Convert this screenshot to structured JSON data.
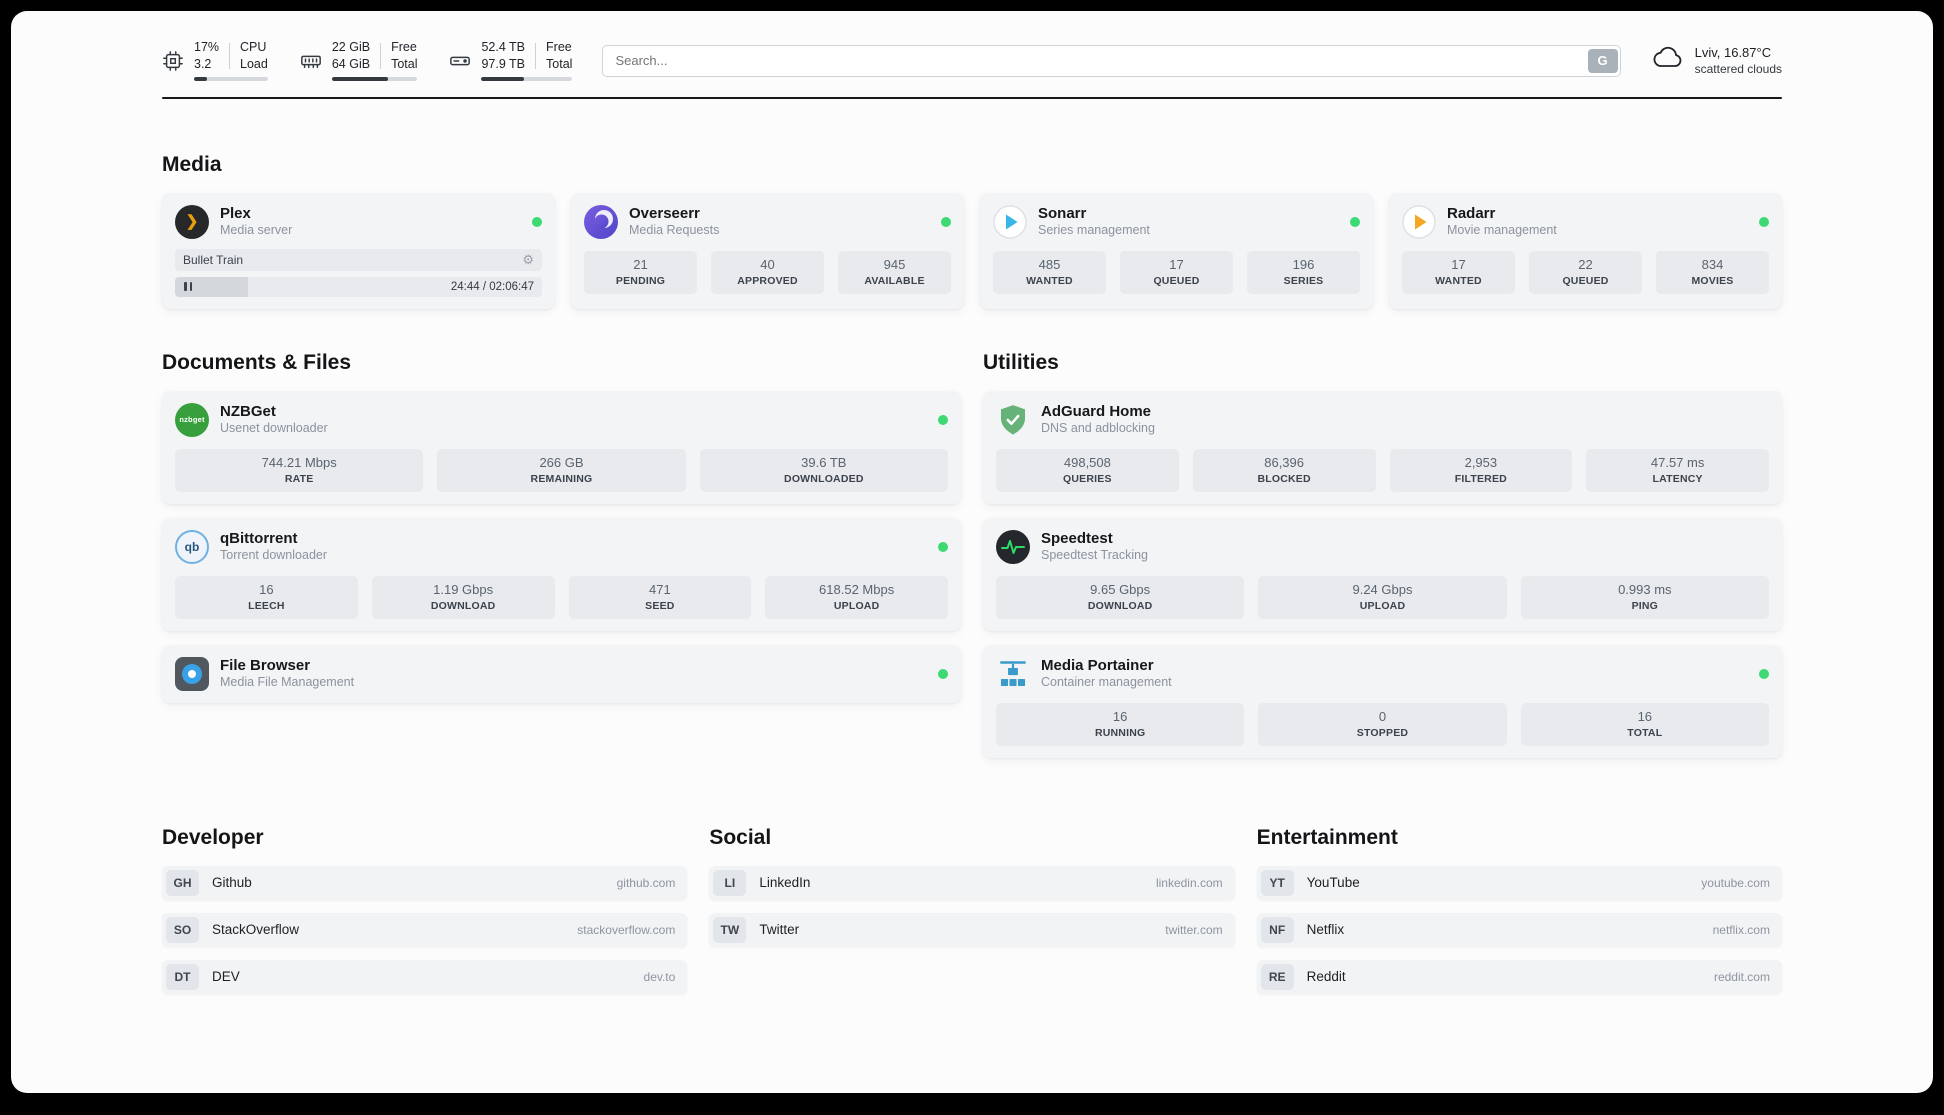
{
  "topbar": {
    "cpu": {
      "percent": "17%",
      "value": "3.2",
      "label_top": "CPU",
      "label_bottom": "Load",
      "progress": 17
    },
    "ram": {
      "free": "22 GiB",
      "total": "64 GiB",
      "label_top": "Free",
      "label_bottom": "Total",
      "progress": 66
    },
    "disk": {
      "free": "52.4 TB",
      "total": "97.9 TB",
      "label_top": "Free",
      "label_bottom": "Total",
      "progress": 47
    },
    "search": {
      "placeholder": "Search...",
      "engine_label": "G"
    },
    "weather": {
      "location": "Lviv, 16.87°C",
      "condition": "scattered clouds"
    }
  },
  "sections": {
    "media": "Media",
    "documents": "Documents & Files",
    "utilities": "Utilities",
    "developer": "Developer",
    "social": "Social",
    "entertainment": "Entertainment"
  },
  "apps": {
    "plex": {
      "name": "Plex",
      "subtitle": "Media server",
      "now_playing": "Bullet Train",
      "time": "24:44 / 02:06:47",
      "progress": 20,
      "glyph": "❯",
      "gear": "⚙"
    },
    "overseerr": {
      "name": "Overseerr",
      "subtitle": "Media Requests",
      "stats": [
        {
          "value": "21",
          "label": "PENDING"
        },
        {
          "value": "40",
          "label": "APPROVED"
        },
        {
          "value": "945",
          "label": "AVAILABLE"
        }
      ]
    },
    "sonarr": {
      "name": "Sonarr",
      "subtitle": "Series management",
      "stats": [
        {
          "value": "485",
          "label": "WANTED"
        },
        {
          "value": "17",
          "label": "QUEUED"
        },
        {
          "value": "196",
          "label": "SERIES"
        }
      ]
    },
    "radarr": {
      "name": "Radarr",
      "subtitle": "Movie management",
      "stats": [
        {
          "value": "17",
          "label": "WANTED"
        },
        {
          "value": "22",
          "label": "QUEUED"
        },
        {
          "value": "834",
          "label": "MOVIES"
        }
      ]
    },
    "nzbget": {
      "name": "NZBGet",
      "subtitle": "Usenet downloader",
      "icon_text": "nzbget",
      "stats": [
        {
          "value": "744.21 Mbps",
          "label": "RATE"
        },
        {
          "value": "266 GB",
          "label": "REMAINING"
        },
        {
          "value": "39.6 TB",
          "label": "DOWNLOADED"
        }
      ]
    },
    "qbittorrent": {
      "name": "qBittorrent",
      "subtitle": "Torrent downloader",
      "icon_text": "qb",
      "stats": [
        {
          "value": "16",
          "label": "LEECH"
        },
        {
          "value": "1.19 Gbps",
          "label": "DOWNLOAD"
        },
        {
          "value": "471",
          "label": "SEED"
        },
        {
          "value": "618.52 Mbps",
          "label": "UPLOAD"
        }
      ]
    },
    "filebrowser": {
      "name": "File Browser",
      "subtitle": "Media File Management"
    },
    "adguard": {
      "name": "AdGuard Home",
      "subtitle": "DNS and adblocking",
      "stats": [
        {
          "value": "498,508",
          "label": "QUERIES"
        },
        {
          "value": "86,396",
          "label": "BLOCKED"
        },
        {
          "value": "2,953",
          "label": "FILTERED"
        },
        {
          "value": "47.57 ms",
          "label": "LATENCY"
        }
      ]
    },
    "speedtest": {
      "name": "Speedtest",
      "subtitle": "Speedtest Tracking",
      "stats": [
        {
          "value": "9.65 Gbps",
          "label": "DOWNLOAD"
        },
        {
          "value": "9.24 Gbps",
          "label": "UPLOAD"
        },
        {
          "value": "0.993 ms",
          "label": "PING"
        }
      ]
    },
    "portainer": {
      "name": "Media Portainer",
      "subtitle": "Container management",
      "stats": [
        {
          "value": "16",
          "label": "RUNNING"
        },
        {
          "value": "0",
          "label": "STOPPED"
        },
        {
          "value": "16",
          "label": "TOTAL"
        }
      ]
    }
  },
  "bookmarks": {
    "developer": [
      {
        "abbr": "GH",
        "name": "Github",
        "domain": "github.com"
      },
      {
        "abbr": "SO",
        "name": "StackOverflow",
        "domain": "stackoverflow.com"
      },
      {
        "abbr": "DT",
        "name": "DEV",
        "domain": "dev.to"
      }
    ],
    "social": [
      {
        "abbr": "LI",
        "name": "LinkedIn",
        "domain": "linkedin.com"
      },
      {
        "abbr": "TW",
        "name": "Twitter",
        "domain": "twitter.com"
      }
    ],
    "entertainment": [
      {
        "abbr": "YT",
        "name": "YouTube",
        "domain": "youtube.com"
      },
      {
        "abbr": "NF",
        "name": "Netflix",
        "domain": "netflix.com"
      },
      {
        "abbr": "RE",
        "name": "Reddit",
        "domain": "reddit.com"
      }
    ]
  },
  "colors": {
    "status_online": "#3dd973",
    "plex_amber": "#e5a00d",
    "sonarr_blue": "#38b6e8",
    "radarr_amber": "#f5a623",
    "overseerr_purple": "#5d5fe0",
    "adguard_green": "#67b279",
    "speedtest_green": "#2bdd66",
    "portainer_blue": "#3a9ac9"
  }
}
